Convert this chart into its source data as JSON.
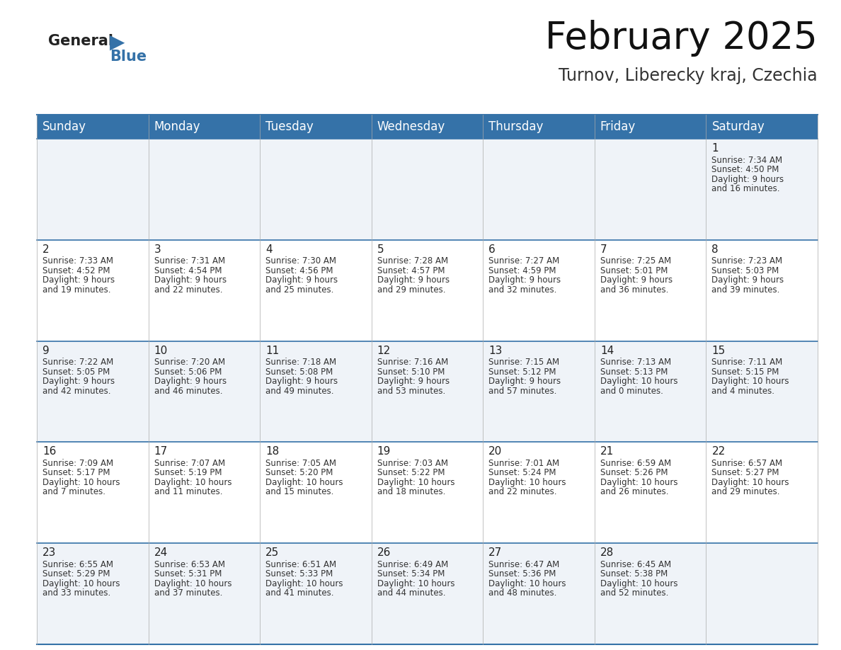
{
  "title": "February 2025",
  "subtitle": "Turnov, Liberecky kraj, Czechia",
  "header_color": "#3572a8",
  "header_text_color": "#ffffff",
  "background_color": "#ffffff",
  "cell_bg_row0": "#eff3f8",
  "cell_bg_row1": "#ffffff",
  "cell_bg_row2": "#eff3f8",
  "cell_bg_row3": "#ffffff",
  "cell_bg_row4": "#eff3f8",
  "day_headers": [
    "Sunday",
    "Monday",
    "Tuesday",
    "Wednesday",
    "Thursday",
    "Friday",
    "Saturday"
  ],
  "title_fontsize": 38,
  "subtitle_fontsize": 17,
  "header_fontsize": 12,
  "day_num_fontsize": 11,
  "cell_fontsize": 8.5,
  "logo_general_fontsize": 15,
  "logo_blue_fontsize": 15,
  "days": [
    {
      "date": 1,
      "col": 6,
      "row": 0,
      "sunrise": "7:34 AM",
      "sunset": "4:50 PM",
      "daylight": "9 hours and 16 minutes."
    },
    {
      "date": 2,
      "col": 0,
      "row": 1,
      "sunrise": "7:33 AM",
      "sunset": "4:52 PM",
      "daylight": "9 hours and 19 minutes."
    },
    {
      "date": 3,
      "col": 1,
      "row": 1,
      "sunrise": "7:31 AM",
      "sunset": "4:54 PM",
      "daylight": "9 hours and 22 minutes."
    },
    {
      "date": 4,
      "col": 2,
      "row": 1,
      "sunrise": "7:30 AM",
      "sunset": "4:56 PM",
      "daylight": "9 hours and 25 minutes."
    },
    {
      "date": 5,
      "col": 3,
      "row": 1,
      "sunrise": "7:28 AM",
      "sunset": "4:57 PM",
      "daylight": "9 hours and 29 minutes."
    },
    {
      "date": 6,
      "col": 4,
      "row": 1,
      "sunrise": "7:27 AM",
      "sunset": "4:59 PM",
      "daylight": "9 hours and 32 minutes."
    },
    {
      "date": 7,
      "col": 5,
      "row": 1,
      "sunrise": "7:25 AM",
      "sunset": "5:01 PM",
      "daylight": "9 hours and 36 minutes."
    },
    {
      "date": 8,
      "col": 6,
      "row": 1,
      "sunrise": "7:23 AM",
      "sunset": "5:03 PM",
      "daylight": "9 hours and 39 minutes."
    },
    {
      "date": 9,
      "col": 0,
      "row": 2,
      "sunrise": "7:22 AM",
      "sunset": "5:05 PM",
      "daylight": "9 hours and 42 minutes."
    },
    {
      "date": 10,
      "col": 1,
      "row": 2,
      "sunrise": "7:20 AM",
      "sunset": "5:06 PM",
      "daylight": "9 hours and 46 minutes."
    },
    {
      "date": 11,
      "col": 2,
      "row": 2,
      "sunrise": "7:18 AM",
      "sunset": "5:08 PM",
      "daylight": "9 hours and 49 minutes."
    },
    {
      "date": 12,
      "col": 3,
      "row": 2,
      "sunrise": "7:16 AM",
      "sunset": "5:10 PM",
      "daylight": "9 hours and 53 minutes."
    },
    {
      "date": 13,
      "col": 4,
      "row": 2,
      "sunrise": "7:15 AM",
      "sunset": "5:12 PM",
      "daylight": "9 hours and 57 minutes."
    },
    {
      "date": 14,
      "col": 5,
      "row": 2,
      "sunrise": "7:13 AM",
      "sunset": "5:13 PM",
      "daylight": "10 hours and 0 minutes."
    },
    {
      "date": 15,
      "col": 6,
      "row": 2,
      "sunrise": "7:11 AM",
      "sunset": "5:15 PM",
      "daylight": "10 hours and 4 minutes."
    },
    {
      "date": 16,
      "col": 0,
      "row": 3,
      "sunrise": "7:09 AM",
      "sunset": "5:17 PM",
      "daylight": "10 hours and 7 minutes."
    },
    {
      "date": 17,
      "col": 1,
      "row": 3,
      "sunrise": "7:07 AM",
      "sunset": "5:19 PM",
      "daylight": "10 hours and 11 minutes."
    },
    {
      "date": 18,
      "col": 2,
      "row": 3,
      "sunrise": "7:05 AM",
      "sunset": "5:20 PM",
      "daylight": "10 hours and 15 minutes."
    },
    {
      "date": 19,
      "col": 3,
      "row": 3,
      "sunrise": "7:03 AM",
      "sunset": "5:22 PM",
      "daylight": "10 hours and 18 minutes."
    },
    {
      "date": 20,
      "col": 4,
      "row": 3,
      "sunrise": "7:01 AM",
      "sunset": "5:24 PM",
      "daylight": "10 hours and 22 minutes."
    },
    {
      "date": 21,
      "col": 5,
      "row": 3,
      "sunrise": "6:59 AM",
      "sunset": "5:26 PM",
      "daylight": "10 hours and 26 minutes."
    },
    {
      "date": 22,
      "col": 6,
      "row": 3,
      "sunrise": "6:57 AM",
      "sunset": "5:27 PM",
      "daylight": "10 hours and 29 minutes."
    },
    {
      "date": 23,
      "col": 0,
      "row": 4,
      "sunrise": "6:55 AM",
      "sunset": "5:29 PM",
      "daylight": "10 hours and 33 minutes."
    },
    {
      "date": 24,
      "col": 1,
      "row": 4,
      "sunrise": "6:53 AM",
      "sunset": "5:31 PM",
      "daylight": "10 hours and 37 minutes."
    },
    {
      "date": 25,
      "col": 2,
      "row": 4,
      "sunrise": "6:51 AM",
      "sunset": "5:33 PM",
      "daylight": "10 hours and 41 minutes."
    },
    {
      "date": 26,
      "col": 3,
      "row": 4,
      "sunrise": "6:49 AM",
      "sunset": "5:34 PM",
      "daylight": "10 hours and 44 minutes."
    },
    {
      "date": 27,
      "col": 4,
      "row": 4,
      "sunrise": "6:47 AM",
      "sunset": "5:36 PM",
      "daylight": "10 hours and 48 minutes."
    },
    {
      "date": 28,
      "col": 5,
      "row": 4,
      "sunrise": "6:45 AM",
      "sunset": "5:38 PM",
      "daylight": "10 hours and 52 minutes."
    }
  ]
}
